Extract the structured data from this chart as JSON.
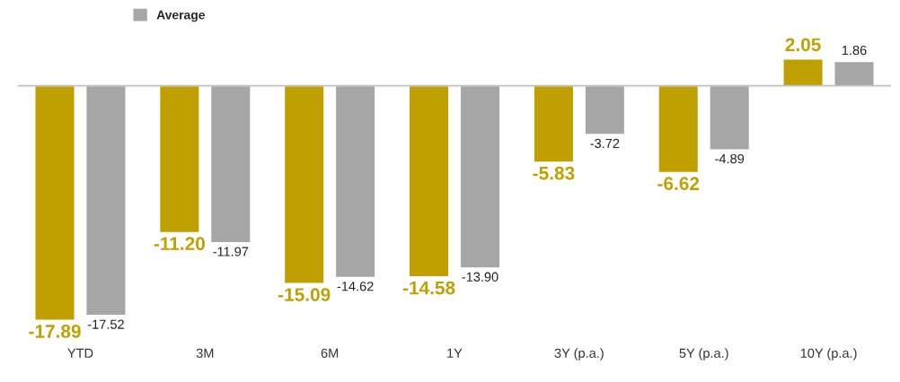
{
  "chart_data": {
    "type": "bar",
    "categories": [
      "YTD",
      "3M",
      "6M",
      "1Y",
      "3Y (p.a.)",
      "5Y (p.a.)",
      "10Y (p.a.)"
    ],
    "series": [
      {
        "color": "#c0a000",
        "values": [
          -17.89,
          -11.2,
          -15.09,
          -14.58,
          -5.83,
          -6.62,
          2.05
        ],
        "value_labels": [
          "-17.89",
          "-11.20",
          "-15.09",
          "-14.58",
          "-5.83",
          "-6.62",
          "2.05"
        ]
      },
      {
        "name": "Average",
        "color": "#a6a6a6",
        "values": [
          -17.52,
          -11.97,
          -14.62,
          -13.9,
          -3.72,
          -4.89,
          1.86
        ],
        "value_labels": [
          "-17.52",
          "-11.97",
          "-14.62",
          "-13.90",
          "-3.72",
          "-4.89",
          "1.86"
        ]
      }
    ],
    "legend": "top left",
    "grid": false
  }
}
